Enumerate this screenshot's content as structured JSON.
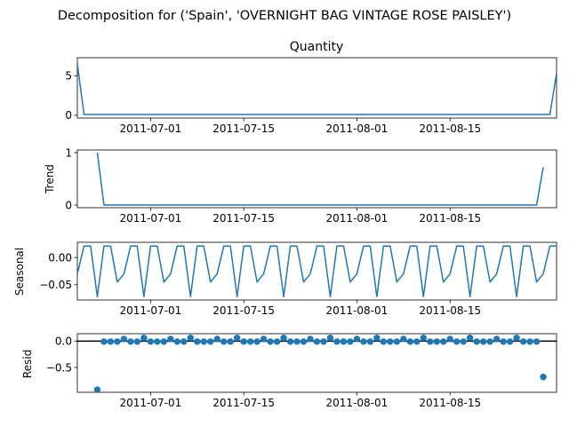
{
  "figure": {
    "suptitle": "Decomposition for ('Spain', 'OVERNIGHT BAG VINTAGE ROSE PAISLEY')"
  },
  "chart_data": [
    {
      "type": "line",
      "title": "Quantity",
      "ylabel": "",
      "x_range": [
        "2011-06-20",
        "2011-08-31"
      ],
      "x_ticks": [
        "2011-07-01",
        "2011-07-15",
        "2011-08-01",
        "2011-08-15"
      ],
      "ylim": [
        -0.35,
        7.3
      ],
      "y_ticks": [
        0,
        5
      ],
      "y_tick_labels": [
        "0",
        "5"
      ],
      "color": "#1f77b4",
      "series": [
        {
          "points": [
            [
              "2011-06-20",
              6.5
            ],
            [
              "2011-06-21",
              0.1
            ],
            [
              "2011-08-30",
              0.1
            ],
            [
              "2011-08-31",
              5.3
            ]
          ]
        }
      ]
    },
    {
      "type": "line",
      "title": "",
      "ylabel": "Trend",
      "x_range": [
        "2011-06-20",
        "2011-08-31"
      ],
      "x_ticks": [
        "2011-07-01",
        "2011-07-15",
        "2011-08-01",
        "2011-08-15"
      ],
      "ylim": [
        -0.05,
        1.05
      ],
      "y_ticks": [
        0,
        1
      ],
      "y_tick_labels": [
        "0",
        "1"
      ],
      "color": "#1f77b4",
      "series": [
        {
          "points": [
            [
              "2011-06-23",
              1.0
            ],
            [
              "2011-06-24",
              0.0
            ],
            [
              "2011-08-28",
              0.0
            ],
            [
              "2011-08-29",
              0.72
            ]
          ]
        }
      ]
    },
    {
      "type": "line",
      "title": "",
      "ylabel": "Seasonal",
      "x_range": [
        "2011-06-20",
        "2011-08-31"
      ],
      "x_ticks": [
        "2011-07-01",
        "2011-07-15",
        "2011-08-01",
        "2011-08-15"
      ],
      "ylim": [
        -0.078,
        0.028
      ],
      "y_ticks": [
        0.0,
        -0.05
      ],
      "y_tick_labels": [
        "0.00",
        "−0.05"
      ],
      "color": "#1f77b4",
      "pattern_start": "2011-06-20",
      "pattern_period_days": 7,
      "pattern_values": [
        -0.03,
        0.021,
        0.021,
        -0.072,
        0.021,
        0.021,
        -0.045
      ],
      "series": [
        {
          "points": []
        }
      ]
    },
    {
      "type": "scatter",
      "title": "",
      "ylabel": "Resid",
      "x_range": [
        "2011-06-20",
        "2011-08-31"
      ],
      "x_ticks": [
        "2011-07-01",
        "2011-07-15",
        "2011-08-01",
        "2011-08-15"
      ],
      "ylim": [
        -0.97,
        0.14
      ],
      "y_ticks": [
        0.0,
        -0.5
      ],
      "y_tick_labels": [
        "0.0",
        "−0.5"
      ],
      "color": "#1f77b4",
      "hline": 0,
      "series": [
        {
          "points": [
            [
              "2011-06-23",
              -0.92
            ],
            [
              "2011-06-24",
              -0.01
            ],
            [
              "2011-06-25",
              -0.01
            ],
            [
              "2011-06-26",
              -0.01
            ],
            [
              "2011-06-27",
              0.04
            ],
            [
              "2011-06-28",
              -0.01
            ],
            [
              "2011-06-29",
              -0.01
            ],
            [
              "2011-06-30",
              0.06
            ],
            [
              "2011-07-01",
              -0.01
            ],
            [
              "2011-07-02",
              -0.01
            ],
            [
              "2011-07-03",
              -0.01
            ],
            [
              "2011-07-04",
              0.04
            ],
            [
              "2011-07-05",
              -0.01
            ],
            [
              "2011-07-06",
              -0.01
            ],
            [
              "2011-07-07",
              0.06
            ],
            [
              "2011-07-08",
              -0.01
            ],
            [
              "2011-07-09",
              -0.01
            ],
            [
              "2011-07-10",
              -0.01
            ],
            [
              "2011-07-11",
              0.04
            ],
            [
              "2011-07-12",
              -0.01
            ],
            [
              "2011-07-13",
              -0.01
            ],
            [
              "2011-07-14",
              0.06
            ],
            [
              "2011-07-15",
              -0.01
            ],
            [
              "2011-07-16",
              -0.01
            ],
            [
              "2011-07-17",
              -0.01
            ],
            [
              "2011-07-18",
              0.04
            ],
            [
              "2011-07-19",
              -0.01
            ],
            [
              "2011-07-20",
              -0.01
            ],
            [
              "2011-07-21",
              0.06
            ],
            [
              "2011-07-22",
              -0.01
            ],
            [
              "2011-07-23",
              -0.01
            ],
            [
              "2011-07-24",
              -0.01
            ],
            [
              "2011-07-25",
              0.04
            ],
            [
              "2011-07-26",
              -0.01
            ],
            [
              "2011-07-27",
              -0.01
            ],
            [
              "2011-07-28",
              0.06
            ],
            [
              "2011-07-29",
              -0.01
            ],
            [
              "2011-07-30",
              -0.01
            ],
            [
              "2011-07-31",
              -0.01
            ],
            [
              "2011-08-01",
              0.04
            ],
            [
              "2011-08-02",
              -0.01
            ],
            [
              "2011-08-03",
              -0.01
            ],
            [
              "2011-08-04",
              0.06
            ],
            [
              "2011-08-05",
              -0.01
            ],
            [
              "2011-08-06",
              -0.01
            ],
            [
              "2011-08-07",
              -0.01
            ],
            [
              "2011-08-08",
              0.04
            ],
            [
              "2011-08-09",
              -0.01
            ],
            [
              "2011-08-10",
              -0.01
            ],
            [
              "2011-08-11",
              0.06
            ],
            [
              "2011-08-12",
              -0.01
            ],
            [
              "2011-08-13",
              -0.01
            ],
            [
              "2011-08-14",
              -0.01
            ],
            [
              "2011-08-15",
              0.04
            ],
            [
              "2011-08-16",
              -0.01
            ],
            [
              "2011-08-17",
              -0.01
            ],
            [
              "2011-08-18",
              0.06
            ],
            [
              "2011-08-19",
              -0.01
            ],
            [
              "2011-08-20",
              -0.01
            ],
            [
              "2011-08-21",
              -0.01
            ],
            [
              "2011-08-22",
              0.04
            ],
            [
              "2011-08-23",
              -0.01
            ],
            [
              "2011-08-24",
              -0.01
            ],
            [
              "2011-08-25",
              0.06
            ],
            [
              "2011-08-26",
              -0.01
            ],
            [
              "2011-08-27",
              -0.01
            ],
            [
              "2011-08-28",
              -0.01
            ],
            [
              "2011-08-29",
              -0.68
            ]
          ]
        }
      ]
    }
  ]
}
